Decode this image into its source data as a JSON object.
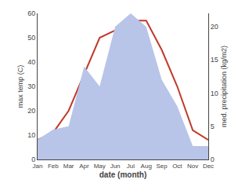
{
  "chart_data": {
    "type": "line",
    "xlabel": "date (month)",
    "ylabel": "max temp (C)",
    "y2label": "med. precipitation (kg/m2)",
    "categories": [
      "Jan",
      "Feb",
      "Mar",
      "Apr",
      "May",
      "Jun",
      "Jul",
      "Aug",
      "Sep",
      "Oct",
      "Nov",
      "Dec"
    ],
    "series": [
      {
        "type": "area",
        "axis": "y2",
        "color": "#b8c4e8",
        "values": [
          3,
          4.5,
          5,
          14,
          11,
          20,
          22,
          20,
          12,
          8,
          2,
          2
        ]
      },
      {
        "type": "line",
        "color": "#c0392b",
        "values": [
          8,
          11,
          20,
          35,
          50,
          53,
          57,
          57,
          45,
          30,
          12,
          8
        ]
      }
    ],
    "ylim": [
      0,
      60
    ],
    "yticks": [
      0,
      10,
      20,
      30,
      40,
      50,
      60
    ],
    "y2lim": [
      0,
      22
    ],
    "y2ticks": [
      0,
      5,
      10,
      15,
      20
    ],
    "grid": false
  }
}
